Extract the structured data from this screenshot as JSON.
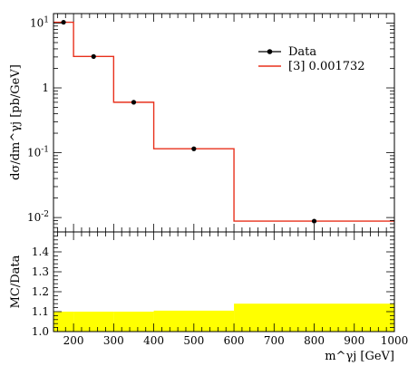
{
  "chart_data": [
    {
      "type": "line",
      "panel": "main",
      "ylabel": "dσ/dm^γj [pb/GeV]",
      "yscale": "log",
      "ylim": [
        0.006,
        14
      ],
      "xlim": [
        150,
        1000
      ],
      "ytick_labels": [
        "10^-2",
        "10^-1",
        "1",
        "10^1"
      ],
      "legend_position": "top-right",
      "series": [
        {
          "name": "Data",
          "kind": "points",
          "color": "#000000",
          "x": [
            175,
            250,
            350,
            500,
            800
          ],
          "y": [
            10.3,
            3.05,
            0.6,
            0.115,
            0.0088
          ]
        },
        {
          "name": "[3] 0.001732",
          "kind": "step",
          "color": "#e8301c",
          "bin_edges": [
            150,
            200,
            300,
            400,
            600,
            1000
          ],
          "values": [
            10.3,
            3.05,
            0.6,
            0.115,
            0.0088
          ]
        }
      ]
    },
    {
      "type": "area",
      "panel": "ratio",
      "ylabel": "MC/Data",
      "ylim": [
        1.0,
        1.5
      ],
      "xlim": [
        150,
        1000
      ],
      "xlabel": "m^γj [GeV]",
      "ytick_labels": [
        "1.0",
        "1.1",
        "1.2",
        "1.3",
        "1.4"
      ],
      "xtick_labels": [
        "200",
        "300",
        "400",
        "500",
        "600",
        "700",
        "800",
        "900",
        "1000"
      ],
      "band_color": "#ffff00",
      "series": [
        {
          "kind": "step-band",
          "bin_edges": [
            150,
            200,
            300,
            400,
            600,
            1000
          ],
          "low": [
            1.0,
            1.0,
            1.0,
            1.0,
            1.0
          ],
          "high": [
            1.1,
            1.1,
            1.1,
            1.105,
            1.14
          ]
        }
      ]
    }
  ]
}
